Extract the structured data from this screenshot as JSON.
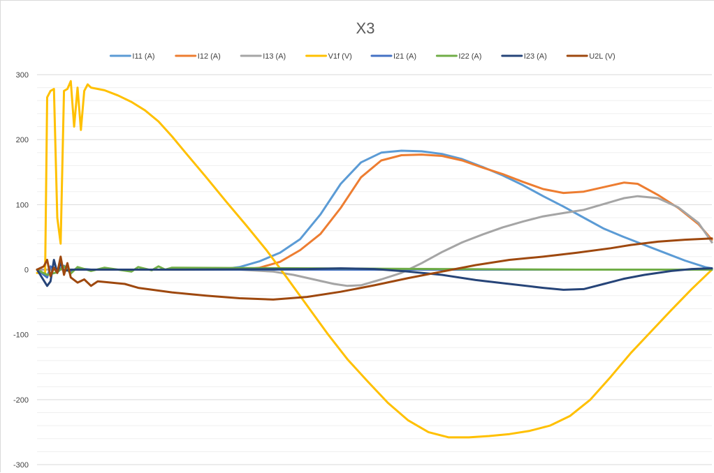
{
  "chart_data": {
    "type": "line",
    "title": "X3",
    "subtitle": "",
    "xlabel": "",
    "ylabel": "",
    "ylim": [
      -300,
      300
    ],
    "y_ticks": [
      300,
      200,
      100,
      0,
      -100,
      -200,
      -300
    ],
    "y_tick_labels": [
      "300",
      "200",
      "100",
      "0",
      "-100",
      "-200",
      "-300"
    ],
    "x_range": [
      0,
      100
    ],
    "grid": true,
    "legend_position": "top",
    "series": [
      {
        "name": "I11 (A)",
        "color": "#5B9BD5",
        "points": [
          [
            0,
            0
          ],
          [
            10,
            0
          ],
          [
            20,
            0
          ],
          [
            27,
            0
          ],
          [
            30,
            4
          ],
          [
            33,
            13
          ],
          [
            36,
            26
          ],
          [
            39,
            47
          ],
          [
            42,
            85
          ],
          [
            45,
            132
          ],
          [
            48,
            165
          ],
          [
            51,
            180
          ],
          [
            54,
            183
          ],
          [
            57,
            182
          ],
          [
            60,
            178
          ],
          [
            63,
            170
          ],
          [
            66,
            158
          ],
          [
            69,
            145
          ],
          [
            72,
            130
          ],
          [
            75,
            113
          ],
          [
            78,
            97
          ],
          [
            81,
            80
          ],
          [
            84,
            63
          ],
          [
            87,
            50
          ],
          [
            90,
            38
          ],
          [
            93,
            26
          ],
          [
            96,
            14
          ],
          [
            99,
            4
          ],
          [
            100,
            2
          ]
        ]
      },
      {
        "name": "I12 (A)",
        "color": "#ED7D31",
        "points": [
          [
            0,
            0
          ],
          [
            10,
            0
          ],
          [
            20,
            0
          ],
          [
            30,
            0
          ],
          [
            33,
            3
          ],
          [
            36,
            12
          ],
          [
            39,
            30
          ],
          [
            42,
            55
          ],
          [
            45,
            95
          ],
          [
            48,
            142
          ],
          [
            51,
            168
          ],
          [
            54,
            176
          ],
          [
            57,
            177
          ],
          [
            60,
            175
          ],
          [
            63,
            168
          ],
          [
            66,
            157
          ],
          [
            69,
            147
          ],
          [
            72,
            135
          ],
          [
            75,
            124
          ],
          [
            78,
            118
          ],
          [
            81,
            120
          ],
          [
            84,
            127
          ],
          [
            87,
            134
          ],
          [
            89,
            132
          ],
          [
            92,
            115
          ],
          [
            95,
            95
          ],
          [
            98,
            70
          ],
          [
            100,
            46
          ]
        ]
      },
      {
        "name": "I13 (A)",
        "color": "#A5A5A5",
        "points": [
          [
            0,
            0
          ],
          [
            10,
            0
          ],
          [
            20,
            0
          ],
          [
            30,
            0
          ],
          [
            35,
            -3
          ],
          [
            38,
            -8
          ],
          [
            41,
            -15
          ],
          [
            44,
            -22
          ],
          [
            46,
            -25
          ],
          [
            48,
            -24
          ],
          [
            51,
            -15
          ],
          [
            54,
            -5
          ],
          [
            57,
            10
          ],
          [
            60,
            27
          ],
          [
            63,
            42
          ],
          [
            66,
            54
          ],
          [
            69,
            65
          ],
          [
            72,
            74
          ],
          [
            75,
            82
          ],
          [
            78,
            87
          ],
          [
            81,
            92
          ],
          [
            84,
            101
          ],
          [
            87,
            110
          ],
          [
            89,
            113
          ],
          [
            92,
            110
          ],
          [
            95,
            96
          ],
          [
            98,
            72
          ],
          [
            100,
            42
          ]
        ]
      },
      {
        "name": "V1f (V)",
        "color": "#FFC000",
        "points": [
          [
            0,
            -5
          ],
          [
            1.2,
            -5
          ],
          [
            1.5,
            265
          ],
          [
            2,
            275
          ],
          [
            2.5,
            278
          ],
          [
            3,
            80
          ],
          [
            3.5,
            40
          ],
          [
            4,
            275
          ],
          [
            4.5,
            278
          ],
          [
            5,
            290
          ],
          [
            5.5,
            220
          ],
          [
            6,
            280
          ],
          [
            6.5,
            215
          ],
          [
            7,
            275
          ],
          [
            7.5,
            285
          ],
          [
            8,
            280
          ],
          [
            10,
            276
          ],
          [
            12,
            268
          ],
          [
            14,
            258
          ],
          [
            16,
            245
          ],
          [
            18,
            228
          ],
          [
            20,
            205
          ],
          [
            22,
            180
          ],
          [
            25,
            143
          ],
          [
            28,
            105
          ],
          [
            31,
            68
          ],
          [
            34,
            30
          ],
          [
            37,
            -12
          ],
          [
            40,
            -55
          ],
          [
            43,
            -98
          ],
          [
            46,
            -138
          ],
          [
            49,
            -172
          ],
          [
            52,
            -205
          ],
          [
            55,
            -232
          ],
          [
            58,
            -250
          ],
          [
            61,
            -258
          ],
          [
            64,
            -258
          ],
          [
            67,
            -256
          ],
          [
            70,
            -253
          ],
          [
            73,
            -248
          ],
          [
            76,
            -240
          ],
          [
            79,
            -225
          ],
          [
            82,
            -200
          ],
          [
            85,
            -165
          ],
          [
            88,
            -128
          ],
          [
            91,
            -95
          ],
          [
            94,
            -62
          ],
          [
            97,
            -30
          ],
          [
            100,
            0
          ]
        ]
      },
      {
        "name": "I21 (A)",
        "color": "#4472C4",
        "points": [
          [
            0,
            0
          ],
          [
            1.5,
            -12
          ],
          [
            2,
            5
          ],
          [
            3,
            -3
          ],
          [
            4,
            6
          ],
          [
            5,
            -2
          ],
          [
            6,
            2
          ],
          [
            8,
            0
          ],
          [
            20,
            0
          ],
          [
            40,
            0
          ],
          [
            60,
            0
          ],
          [
            80,
            0
          ],
          [
            100,
            0
          ]
        ]
      },
      {
        "name": "I22 (A)",
        "color": "#70AD47",
        "points": [
          [
            0,
            0
          ],
          [
            1.5,
            -8
          ],
          [
            3,
            -4
          ],
          [
            4,
            5
          ],
          [
            5,
            -6
          ],
          [
            6,
            4
          ],
          [
            8,
            -2
          ],
          [
            10,
            3
          ],
          [
            12,
            0
          ],
          [
            14,
            -3
          ],
          [
            15,
            4
          ],
          [
            17,
            -1
          ],
          [
            18,
            5
          ],
          [
            19,
            0
          ],
          [
            20,
            3
          ],
          [
            40,
            2
          ],
          [
            60,
            1
          ],
          [
            80,
            0
          ],
          [
            100,
            0
          ]
        ]
      },
      {
        "name": "I23 (A)",
        "color": "#264478",
        "points": [
          [
            0,
            0
          ],
          [
            1.5,
            -25
          ],
          [
            2,
            -18
          ],
          [
            2.5,
            15
          ],
          [
            3,
            -5
          ],
          [
            3.5,
            10
          ],
          [
            4,
            -2
          ],
          [
            5,
            0
          ],
          [
            20,
            0
          ],
          [
            40,
            1
          ],
          [
            45,
            2
          ],
          [
            50,
            1
          ],
          [
            55,
            -3
          ],
          [
            60,
            -8
          ],
          [
            65,
            -16
          ],
          [
            70,
            -22
          ],
          [
            75,
            -28
          ],
          [
            78,
            -31
          ],
          [
            81,
            -30
          ],
          [
            84,
            -22
          ],
          [
            87,
            -14
          ],
          [
            90,
            -8
          ],
          [
            94,
            -2
          ],
          [
            97,
            1
          ],
          [
            100,
            2
          ]
        ]
      },
      {
        "name": "U2L (V)",
        "color": "#9E480E",
        "points": [
          [
            0,
            0
          ],
          [
            1,
            5
          ],
          [
            1.5,
            15
          ],
          [
            2,
            -10
          ],
          [
            2.5,
            3
          ],
          [
            3,
            -5
          ],
          [
            3.5,
            20
          ],
          [
            4,
            -8
          ],
          [
            4.5,
            10
          ],
          [
            5,
            -12
          ],
          [
            6,
            -20
          ],
          [
            7,
            -15
          ],
          [
            8,
            -25
          ],
          [
            9,
            -18
          ],
          [
            11,
            -20
          ],
          [
            13,
            -22
          ],
          [
            15,
            -28
          ],
          [
            20,
            -35
          ],
          [
            25,
            -40
          ],
          [
            30,
            -44
          ],
          [
            35,
            -46
          ],
          [
            40,
            -42
          ],
          [
            45,
            -34
          ],
          [
            50,
            -24
          ],
          [
            55,
            -13
          ],
          [
            60,
            -3
          ],
          [
            65,
            7
          ],
          [
            70,
            15
          ],
          [
            75,
            20
          ],
          [
            80,
            26
          ],
          [
            85,
            33
          ],
          [
            88,
            38
          ],
          [
            92,
            43
          ],
          [
            96,
            46
          ],
          [
            100,
            48
          ]
        ]
      }
    ]
  }
}
